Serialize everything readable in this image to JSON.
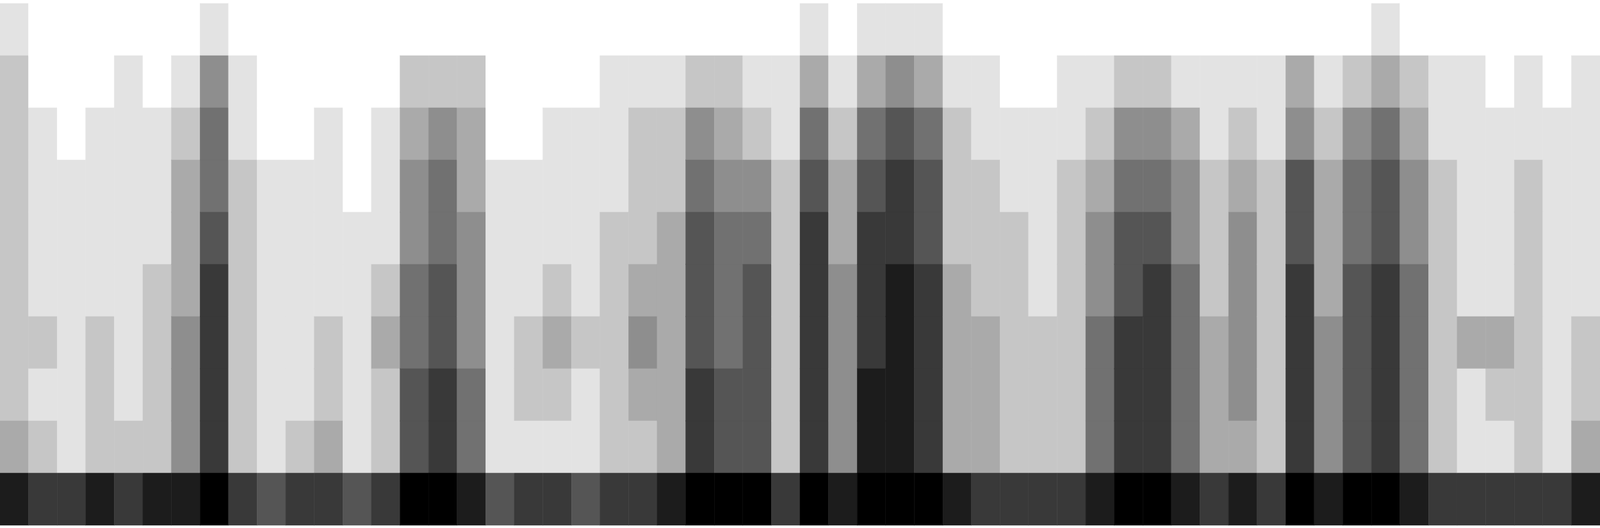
{
  "chart_data": {
    "type": "heatmap",
    "tick_labels": false,
    "color": "#000000",
    "zlim": [
      0,
      9
    ],
    "z": [
      [
        1,
        2,
        2,
        2,
        2,
        2,
        2,
        2,
        3,
        8
      ],
      [
        0,
        0,
        1,
        1,
        1,
        1,
        2,
        1,
        2,
        7
      ],
      [
        0,
        0,
        0,
        1,
        1,
        1,
        1,
        1,
        1,
        7
      ],
      [
        0,
        0,
        1,
        1,
        1,
        1,
        2,
        2,
        2,
        8
      ],
      [
        0,
        1,
        1,
        1,
        1,
        1,
        1,
        1,
        2,
        7
      ],
      [
        0,
        0,
        1,
        1,
        1,
        2,
        2,
        2,
        2,
        8
      ],
      [
        0,
        1,
        2,
        3,
        3,
        3,
        4,
        4,
        4,
        8
      ],
      [
        1,
        4,
        5,
        5,
        6,
        7,
        7,
        7,
        7,
        9
      ],
      [
        0,
        1,
        1,
        2,
        2,
        2,
        2,
        2,
        2,
        7
      ],
      [
        0,
        0,
        0,
        1,
        1,
        1,
        1,
        1,
        1,
        6
      ],
      [
        0,
        0,
        0,
        1,
        1,
        1,
        1,
        1,
        2,
        7
      ],
      [
        0,
        0,
        1,
        1,
        1,
        1,
        2,
        2,
        3,
        7
      ],
      [
        0,
        0,
        0,
        0,
        1,
        1,
        1,
        1,
        1,
        6
      ],
      [
        0,
        0,
        1,
        1,
        1,
        2,
        3,
        2,
        2,
        7
      ],
      [
        0,
        2,
        3,
        4,
        4,
        5,
        5,
        6,
        6,
        9
      ],
      [
        0,
        2,
        4,
        5,
        5,
        6,
        6,
        7,
        7,
        9
      ],
      [
        0,
        2,
        3,
        3,
        4,
        4,
        4,
        5,
        5,
        8
      ],
      [
        0,
        0,
        0,
        1,
        1,
        1,
        1,
        1,
        1,
        6
      ],
      [
        0,
        0,
        0,
        1,
        1,
        1,
        2,
        2,
        1,
        7
      ],
      [
        0,
        0,
        1,
        1,
        1,
        2,
        3,
        2,
        1,
        7
      ],
      [
        0,
        0,
        1,
        1,
        1,
        1,
        2,
        1,
        1,
        6
      ],
      [
        0,
        1,
        1,
        1,
        2,
        2,
        2,
        2,
        2,
        7
      ],
      [
        0,
        1,
        2,
        2,
        2,
        3,
        4,
        3,
        2,
        7
      ],
      [
        0,
        1,
        2,
        2,
        3,
        3,
        3,
        3,
        3,
        8
      ],
      [
        0,
        2,
        4,
        5,
        6,
        6,
        6,
        7,
        7,
        9
      ],
      [
        0,
        2,
        3,
        4,
        5,
        5,
        5,
        6,
        6,
        9
      ],
      [
        0,
        1,
        2,
        4,
        5,
        6,
        6,
        6,
        6,
        9
      ],
      [
        0,
        1,
        1,
        2,
        2,
        2,
        2,
        2,
        2,
        7
      ],
      [
        1,
        3,
        5,
        6,
        7,
        7,
        7,
        7,
        7,
        9
      ],
      [
        0,
        1,
        2,
        3,
        3,
        4,
        4,
        4,
        4,
        8
      ],
      [
        1,
        3,
        5,
        6,
        7,
        7,
        7,
        8,
        8,
        9
      ],
      [
        1,
        4,
        6,
        7,
        7,
        8,
        8,
        8,
        8,
        9
      ],
      [
        1,
        3,
        5,
        6,
        6,
        7,
        7,
        7,
        7,
        9
      ],
      [
        0,
        1,
        2,
        2,
        2,
        3,
        3,
        3,
        3,
        8
      ],
      [
        0,
        1,
        1,
        2,
        2,
        2,
        3,
        3,
        3,
        7
      ],
      [
        0,
        0,
        1,
        1,
        2,
        2,
        2,
        2,
        2,
        7
      ],
      [
        0,
        0,
        1,
        1,
        1,
        1,
        2,
        2,
        2,
        7
      ],
      [
        0,
        1,
        1,
        2,
        2,
        2,
        2,
        2,
        2,
        7
      ],
      [
        0,
        1,
        2,
        3,
        4,
        4,
        5,
        5,
        5,
        8
      ],
      [
        0,
        2,
        4,
        5,
        6,
        6,
        7,
        7,
        7,
        9
      ],
      [
        0,
        2,
        4,
        5,
        6,
        7,
        7,
        7,
        7,
        9
      ],
      [
        0,
        1,
        3,
        4,
        4,
        5,
        5,
        5,
        5,
        8
      ],
      [
        0,
        1,
        1,
        2,
        2,
        2,
        3,
        3,
        3,
        7
      ],
      [
        0,
        1,
        2,
        3,
        4,
        4,
        4,
        4,
        3,
        8
      ],
      [
        0,
        1,
        1,
        2,
        2,
        2,
        2,
        2,
        2,
        7
      ],
      [
        0,
        3,
        4,
        6,
        6,
        7,
        7,
        7,
        7,
        9
      ],
      [
        0,
        1,
        2,
        3,
        3,
        3,
        4,
        4,
        4,
        8
      ],
      [
        0,
        2,
        4,
        5,
        5,
        6,
        6,
        6,
        6,
        9
      ],
      [
        1,
        3,
        5,
        6,
        6,
        7,
        7,
        7,
        7,
        9
      ],
      [
        0,
        2,
        3,
        4,
        4,
        5,
        5,
        5,
        5,
        8
      ],
      [
        0,
        1,
        1,
        2,
        2,
        2,
        2,
        2,
        2,
        7
      ],
      [
        0,
        1,
        1,
        1,
        1,
        1,
        3,
        1,
        1,
        7
      ],
      [
        0,
        0,
        1,
        1,
        1,
        1,
        3,
        2,
        1,
        7
      ],
      [
        0,
        1,
        1,
        2,
        2,
        2,
        2,
        2,
        2,
        7
      ],
      [
        0,
        0,
        1,
        1,
        1,
        1,
        1,
        1,
        1,
        7
      ],
      [
        0,
        1,
        1,
        1,
        1,
        1,
        2,
        2,
        3,
        8
      ]
    ]
  }
}
